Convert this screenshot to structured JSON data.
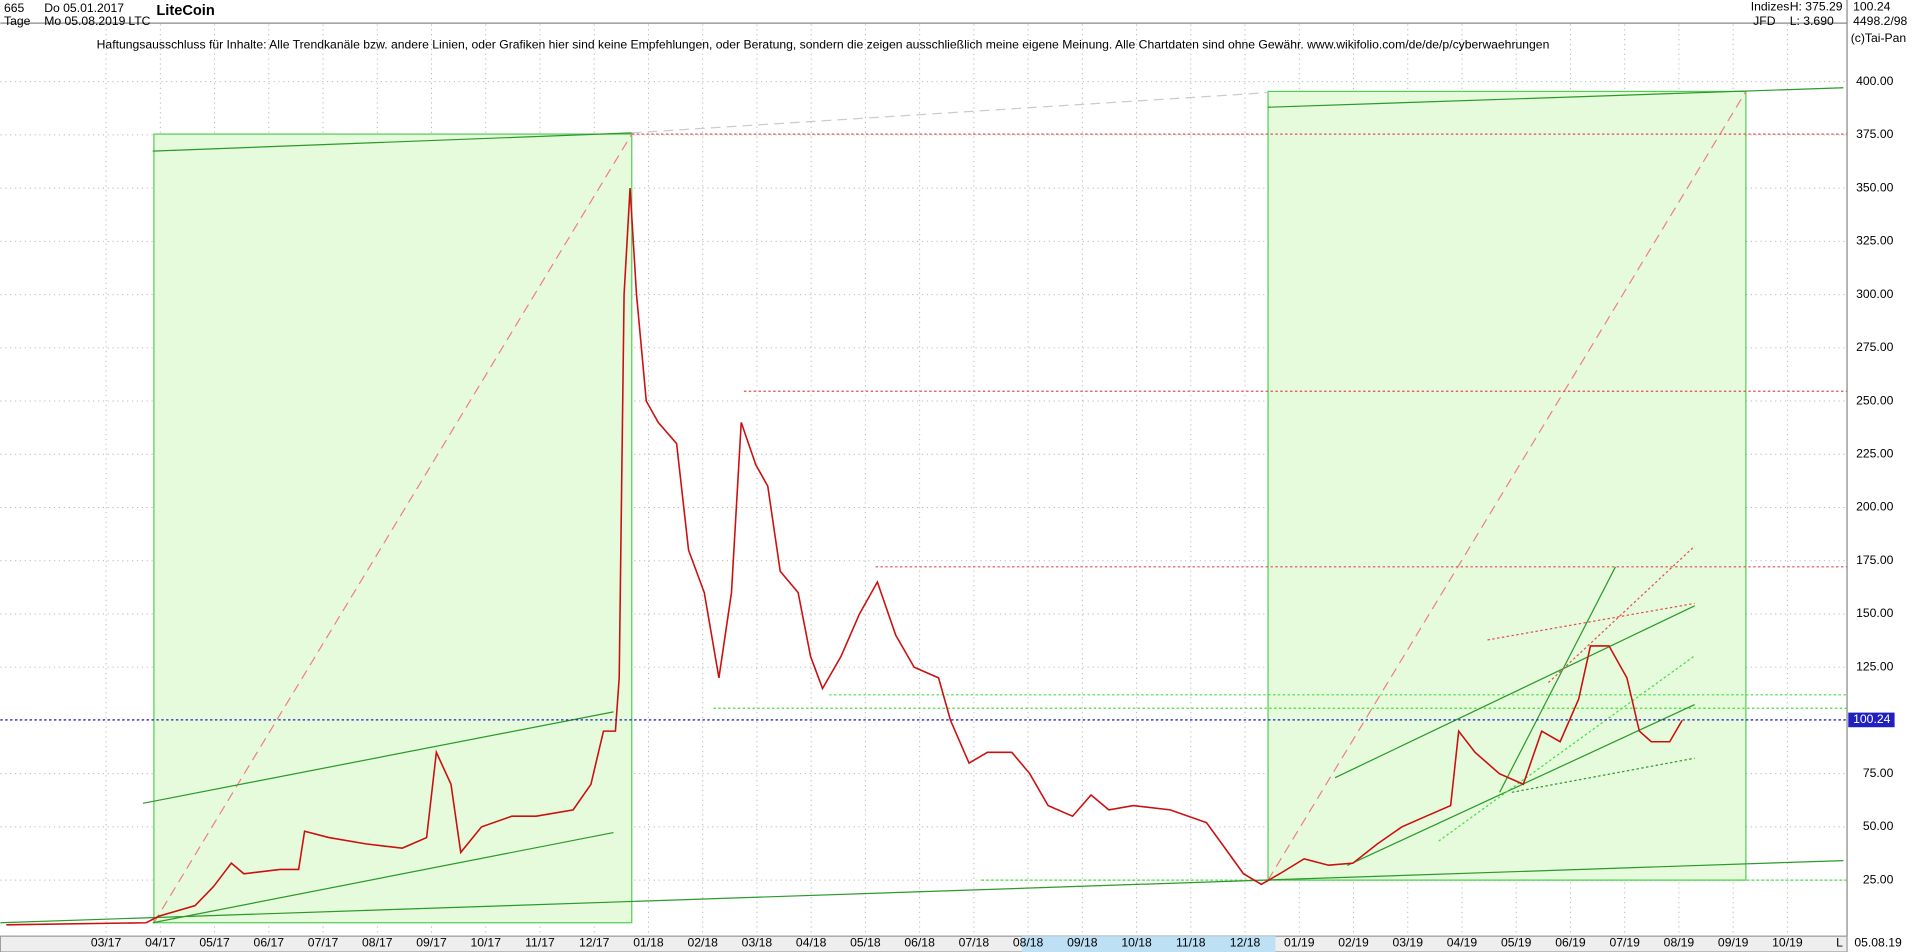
{
  "header": {
    "count": "665",
    "start": "Do 05.01.2017",
    "period": "Tage",
    "end": "Mo 05.08.2019",
    "symbol": "LTC",
    "group": "Indizes",
    "high": "H: 375.29",
    "source": "JFD",
    "low": "L: 3.690",
    "ratio": "4498.2/98",
    "copyright": "(c)Tai-Pan",
    "last_date": "05.08.19",
    "scale_mode": "L"
  },
  "chart_data": {
    "type": "line",
    "title": "LiteCoin",
    "subtitle": "Haftungsausschluss für Inhalte: Alle Trendkanäle bzw. andere Linien, oder Grafiken hier sind keine Empfehlungen, oder Beratung, sondern die zeigen ausschließlich meine eigene Meinung. Alle Chartdaten sind ohne Gewähr.  www.wikifolio.com/de/de/p/cyberwaehrungen",
    "last_value": 100.24,
    "series": [
      {
        "name": "LTC",
        "color": "#cc1010",
        "x": [
          0.16,
          2.74,
          2.97,
          3.64,
          3.98,
          4.31,
          4.54,
          5.21,
          5.55,
          5.66,
          6.11,
          6.79,
          7.46,
          7.91,
          8.09,
          8.36,
          8.54,
          8.92,
          9.48,
          9.93,
          10.61,
          10.94,
          11.17,
          11.39,
          11.46,
          11.55,
          11.66,
          11.78,
          11.96,
          12.18,
          12.52,
          12.74,
          13.03,
          13.3,
          13.53,
          13.71,
          13.98,
          14.2,
          14.43,
          14.76,
          14.99,
          15.21,
          15.55,
          15.89,
          16.22,
          16.56,
          16.9,
          17.35,
          17.57,
          17.91,
          18.25,
          18.7,
          19.03,
          19.37,
          19.82,
          20.16,
          20.49,
          20.94,
          21.62,
          22.29,
          22.63,
          22.97,
          23.3,
          23.64,
          24.09,
          24.54,
          24.99,
          25.44,
          25.89,
          26.34,
          26.79,
          26.94,
          27.24,
          27.69,
          28.13,
          28.47,
          28.81,
          29.15,
          29.37,
          29.71,
          30.04,
          30.27,
          30.49,
          30.83,
          31.06
        ],
        "values": [
          4,
          5,
          8,
          13,
          22,
          33,
          28,
          30,
          30,
          48,
          45,
          42,
          40,
          45,
          85,
          70,
          38,
          50,
          55,
          55,
          58,
          70,
          95,
          95,
          120,
          300,
          350,
          300,
          250,
          240,
          230,
          180,
          160,
          120,
          160,
          240,
          220,
          210,
          170,
          160,
          130,
          115,
          130,
          150,
          165,
          140,
          125,
          120,
          100,
          80,
          85,
          85,
          75,
          60,
          55,
          65,
          58,
          60,
          58,
          52,
          40,
          28,
          23,
          28,
          35,
          32,
          33,
          42,
          50,
          55,
          60,
          95,
          85,
          75,
          70,
          95,
          90,
          110,
          135,
          135,
          120,
          95,
          90,
          90,
          100
        ]
      }
    ],
    "xlim": [
      0.05,
      34.1
    ],
    "xticks": [
      {
        "value": 2,
        "label": "03/17"
      },
      {
        "value": 3,
        "label": "04/17"
      },
      {
        "value": 4,
        "label": "05/17"
      },
      {
        "value": 5,
        "label": "06/17"
      },
      {
        "value": 6,
        "label": "07/17"
      },
      {
        "value": 7,
        "label": "08/17"
      },
      {
        "value": 8,
        "label": "09/17"
      },
      {
        "value": 9,
        "label": "10/17"
      },
      {
        "value": 10,
        "label": "11/17"
      },
      {
        "value": 11,
        "label": "12/17"
      },
      {
        "value": 12,
        "label": "01/18"
      },
      {
        "value": 13,
        "label": "02/18"
      },
      {
        "value": 14,
        "label": "03/18"
      },
      {
        "value": 15,
        "label": "04/18"
      },
      {
        "value": 16,
        "label": "05/18"
      },
      {
        "value": 17,
        "label": "06/18"
      },
      {
        "value": 18,
        "label": "07/18"
      },
      {
        "value": 19,
        "label": "08/18"
      },
      {
        "value": 20,
        "label": "09/18"
      },
      {
        "value": 21,
        "label": "10/18"
      },
      {
        "value": 22,
        "label": "11/18"
      },
      {
        "value": 23,
        "label": "12/18"
      },
      {
        "value": 24,
        "label": "01/19"
      },
      {
        "value": 25,
        "label": "02/19"
      },
      {
        "value": 26,
        "label": "03/19"
      },
      {
        "value": 27,
        "label": "04/19"
      },
      {
        "value": 28,
        "label": "05/19"
      },
      {
        "value": 29,
        "label": "06/19"
      },
      {
        "value": 30,
        "label": "07/19"
      },
      {
        "value": 31,
        "label": "08/19"
      },
      {
        "value": 32,
        "label": "09/19"
      },
      {
        "value": 33,
        "label": "10/19"
      }
    ],
    "ylim": [
      0.4,
      426.9
    ],
    "yticks": [
      {
        "value": 25,
        "label": "25.00"
      },
      {
        "value": 50,
        "label": "50.00"
      },
      {
        "value": 75,
        "label": "75.00"
      },
      {
        "value": 100,
        "label": "100.00"
      },
      {
        "value": 125,
        "label": "125.00"
      },
      {
        "value": 150,
        "label": "150.00"
      },
      {
        "value": 175,
        "label": "175.00"
      },
      {
        "value": 200,
        "label": "200.00"
      },
      {
        "value": 225,
        "label": "225.00"
      },
      {
        "value": 250,
        "label": "250.00"
      },
      {
        "value": 275,
        "label": "275.00"
      },
      {
        "value": 300,
        "label": "300.00"
      },
      {
        "value": 325,
        "label": "325.00"
      },
      {
        "value": 350,
        "label": "350.00"
      },
      {
        "value": 375,
        "label": "375.00"
      },
      {
        "value": 400,
        "label": "400.00"
      }
    ],
    "grid": true
  }
}
